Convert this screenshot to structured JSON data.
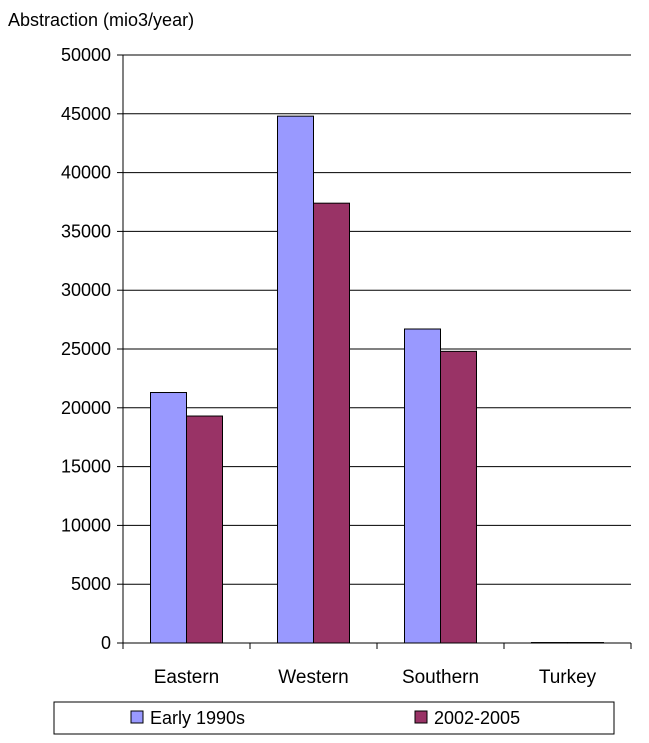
{
  "chart_data": {
    "type": "bar",
    "title": "",
    "ylabel": "Abstraction (mio3/year)",
    "xlabel": "",
    "categories": [
      "Eastern",
      "Western",
      "Southern",
      "Turkey"
    ],
    "series": [
      {
        "name": "Early 1990s",
        "color": "#9999ff",
        "values": [
          21300,
          44800,
          26700,
          40
        ]
      },
      {
        "name": "2002-2005",
        "color": "#993366",
        "values": [
          19300,
          37400,
          24800,
          40
        ]
      }
    ],
    "ylim": [
      0,
      50000
    ],
    "yticks": [
      0,
      5000,
      10000,
      15000,
      20000,
      25000,
      30000,
      35000,
      40000,
      45000,
      50000
    ],
    "grid": true,
    "legend": "bottom"
  }
}
